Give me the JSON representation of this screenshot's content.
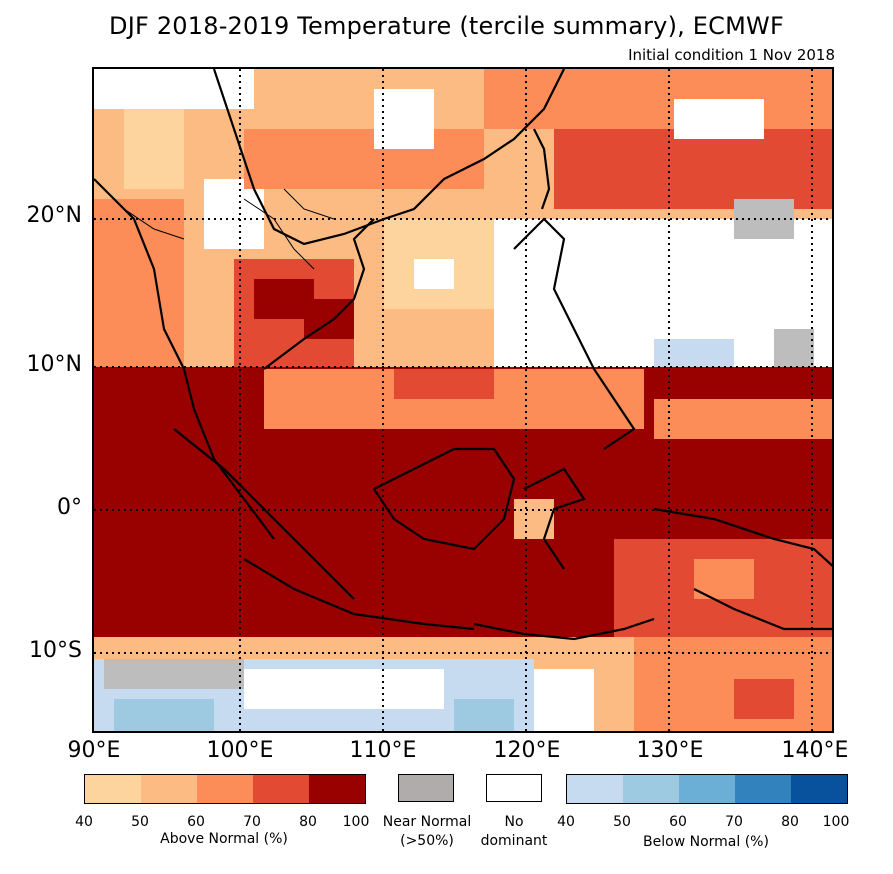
{
  "title": "DJF 2018-2019 Temperature (tercile summary), ECMWF",
  "subtitle": "Initial condition 1 Nov 2018",
  "map": {
    "region": "Southeast Asia",
    "lat_labels": [
      "20°N",
      "10°N",
      "0°",
      "10°S"
    ],
    "lon_labels": [
      "90°E",
      "100°E",
      "110°E",
      "120°E",
      "130°E",
      "140°E"
    ]
  },
  "legend": {
    "above": {
      "caption": "Above Normal (%)",
      "ticks": [
        "40",
        "50",
        "60",
        "70",
        "80",
        "100"
      ],
      "colors": [
        "#fdd49e",
        "#fdbb84",
        "#fc8d59",
        "#e34a33",
        "#990000"
      ]
    },
    "near": {
      "caption_line1": "Near Normal",
      "caption_line2": "(>50%)",
      "color": "#b0acac"
    },
    "none": {
      "caption_line1": "No",
      "caption_line2": "dominant",
      "color": "#ffffff"
    },
    "below": {
      "caption": "Below Normal (%)",
      "ticks": [
        "40",
        "50",
        "60",
        "70",
        "80",
        "100"
      ],
      "colors": [
        "#c6dbef",
        "#9ecae1",
        "#6baed6",
        "#3182bd",
        "#08519c"
      ]
    }
  }
}
